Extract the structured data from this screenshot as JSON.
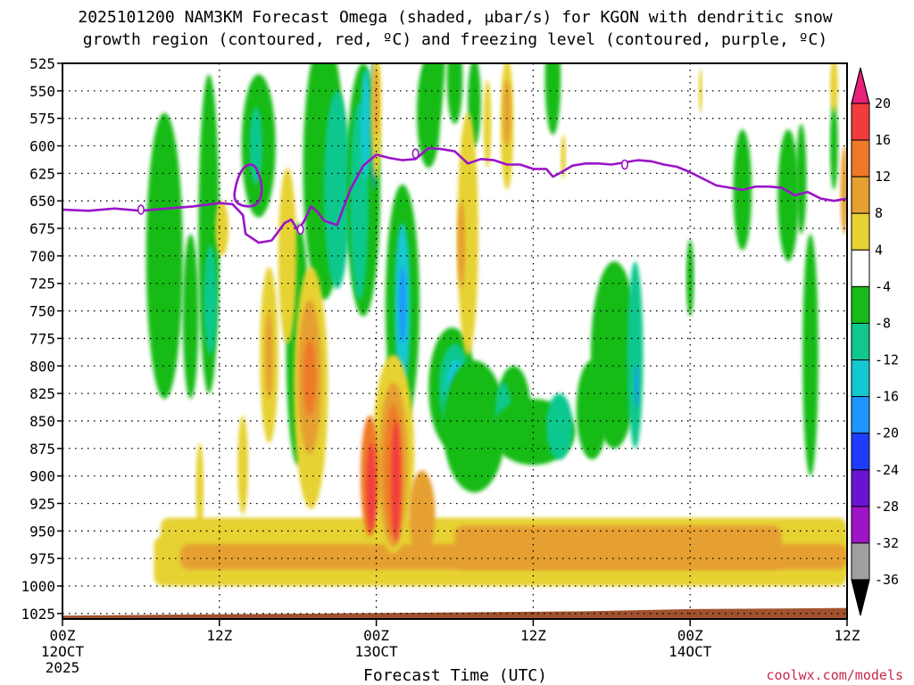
{
  "chart_data": {
    "type": "heatmap",
    "title_line1": "2025101200 NAM3KM Forecast Omega (shaded, μbar/s) for KGON with dendritic snow",
    "title_line2": "growth region (contoured, red, ºC) and freezing level (contoured, purple, ºC)",
    "xlabel": "Forecast Time (UTC)",
    "credit": "coolwx.com/models",
    "x_range_hours": [
      0,
      60
    ],
    "y_range_hpa": [
      525,
      1030
    ],
    "y_ticks": [
      "525",
      "550",
      "575",
      "600",
      "625",
      "650",
      "675",
      "700",
      "725",
      "750",
      "775",
      "800",
      "825",
      "850",
      "875",
      "900",
      "925",
      "950",
      "975",
      "1000",
      "1025"
    ],
    "x_ticks": [
      {
        "hour": 0,
        "label": "00Z",
        "sub1": "12OCT",
        "sub2": "2025"
      },
      {
        "hour": 12,
        "label": "12Z",
        "sub1": "",
        "sub2": ""
      },
      {
        "hour": 24,
        "label": "00Z",
        "sub1": "13OCT",
        "sub2": ""
      },
      {
        "hour": 36,
        "label": "12Z",
        "sub1": "",
        "sub2": ""
      },
      {
        "hour": 48,
        "label": "00Z",
        "sub1": "14OCT",
        "sub2": ""
      },
      {
        "hour": 60,
        "label": "12Z",
        "sub1": "",
        "sub2": ""
      }
    ],
    "colorbar": {
      "levels": [
        "20",
        "16",
        "12",
        "8",
        "4",
        "-4",
        "-8",
        "-12",
        "-16",
        "-20",
        "-24",
        "-28",
        "-32",
        "-36"
      ],
      "colors": [
        "#ee2a5a",
        "#f23c3c",
        "#ee7a28",
        "#e6a030",
        "#e6d232",
        "#ffffff",
        "#16bb16",
        "#10c88e",
        "#14c8d2",
        "#1e96ff",
        "#1e3cff",
        "#6a14d2",
        "#a014c8",
        "#a0a0a0",
        "#000000"
      ],
      "top_color": "#e8207a"
    },
    "freezing_level": {
      "label": "0",
      "points": [
        [
          0,
          658
        ],
        [
          2,
          659
        ],
        [
          4,
          657
        ],
        [
          6,
          659
        ],
        [
          8,
          657
        ],
        [
          10,
          655
        ],
        [
          12,
          652
        ],
        [
          13,
          653
        ],
        [
          13.8,
          663
        ],
        [
          14,
          680
        ],
        [
          15,
          688
        ],
        [
          16,
          686
        ],
        [
          17,
          670
        ],
        [
          17.5,
          667
        ],
        [
          18,
          677
        ],
        [
          18.5,
          668
        ],
        [
          19,
          655
        ],
        [
          19.5,
          660
        ],
        [
          20,
          668
        ],
        [
          21,
          672
        ],
        [
          22,
          640
        ],
        [
          23,
          618
        ],
        [
          24,
          608
        ],
        [
          25,
          611
        ],
        [
          26,
          613
        ],
        [
          27,
          612
        ],
        [
          28,
          602
        ],
        [
          29,
          603
        ],
        [
          30,
          605
        ],
        [
          31,
          616
        ],
        [
          32,
          612
        ],
        [
          33,
          613
        ],
        [
          34,
          617
        ],
        [
          35,
          617
        ],
        [
          36,
          621
        ],
        [
          37,
          621
        ],
        [
          37.5,
          628
        ],
        [
          38,
          625
        ],
        [
          39,
          618
        ],
        [
          40,
          616
        ],
        [
          41,
          616
        ],
        [
          42,
          617
        ],
        [
          43,
          615
        ],
        [
          44,
          613
        ],
        [
          45,
          614
        ],
        [
          46,
          617
        ],
        [
          47,
          619
        ],
        [
          48,
          624
        ],
        [
          49,
          630
        ],
        [
          50,
          636
        ],
        [
          51,
          638
        ],
        [
          52,
          640
        ],
        [
          53,
          637
        ],
        [
          54,
          637
        ],
        [
          55,
          638
        ],
        [
          56,
          645
        ],
        [
          57,
          642
        ],
        [
          58,
          648
        ],
        [
          59,
          650
        ],
        [
          60,
          648
        ]
      ]
    },
    "blobs": [
      {
        "hour": 7.8,
        "hpa": 700,
        "dh": 1.4,
        "dp": 130,
        "level": -8
      },
      {
        "hour": 9.8,
        "hpa": 755,
        "dh": 0.6,
        "dp": 75,
        "level": -8
      },
      {
        "hour": 11.2,
        "hpa": 680,
        "dh": 0.8,
        "dp": 145,
        "level": -8
      },
      {
        "hour": 11.3,
        "hpa": 740,
        "dh": 0.5,
        "dp": 50,
        "level": -12
      },
      {
        "hour": 15.0,
        "hpa": 600,
        "dh": 1.3,
        "dp": 65,
        "level": -8
      },
      {
        "hour": 14.8,
        "hpa": 600,
        "dh": 0.5,
        "dp": 35,
        "level": -12
      },
      {
        "hour": 18.0,
        "hpa": 780,
        "dh": 0.9,
        "dp": 110,
        "level": -8
      },
      {
        "hour": 20.0,
        "hpa": 620,
        "dh": 1.6,
        "dp": 120,
        "level": -8
      },
      {
        "hour": 21.0,
        "hpa": 640,
        "dh": 1.0,
        "dp": 90,
        "level": -12
      },
      {
        "hour": 22.1,
        "hpa": 640,
        "dh": 0.5,
        "dp": 60,
        "level": -16
      },
      {
        "hour": 22.4,
        "hpa": 640,
        "dh": 0.25,
        "dp": 35,
        "level": -20
      },
      {
        "hour": 23.0,
        "hpa": 640,
        "dh": 1.3,
        "dp": 115,
        "level": -8
      },
      {
        "hour": 22.7,
        "hpa": 650,
        "dh": 0.7,
        "dp": 90,
        "level": -12
      },
      {
        "hour": 23.2,
        "hpa": 580,
        "dh": 0.4,
        "dp": 50,
        "level": -16
      },
      {
        "hour": 23.8,
        "hpa": 570,
        "dh": 0.2,
        "dp": 70,
        "level": -20
      },
      {
        "hour": 26.0,
        "hpa": 745,
        "dh": 1.3,
        "dp": 110,
        "level": -8
      },
      {
        "hour": 26.0,
        "hpa": 745,
        "dh": 0.6,
        "dp": 75,
        "level": -16
      },
      {
        "hour": 26.0,
        "hpa": 745,
        "dh": 0.25,
        "dp": 35,
        "level": -20
      },
      {
        "hour": 28.0,
        "hpa": 570,
        "dh": 0.9,
        "dp": 50,
        "level": -8
      },
      {
        "hour": 29.8,
        "hpa": 820,
        "dh": 1.8,
        "dp": 55,
        "level": -8
      },
      {
        "hour": 30.0,
        "hpa": 820,
        "dh": 1.2,
        "dp": 40,
        "level": -12
      },
      {
        "hour": 30.1,
        "hpa": 822,
        "dh": 0.8,
        "dp": 28,
        "level": -16
      },
      {
        "hour": 30.2,
        "hpa": 825,
        "dh": 0.45,
        "dp": 18,
        "level": -20
      },
      {
        "hour": 30.3,
        "hpa": 828,
        "dh": 0.2,
        "dp": 10,
        "level": -24
      },
      {
        "hour": 31.5,
        "hpa": 855,
        "dh": 2.4,
        "dp": 60,
        "level": -8
      },
      {
        "hour": 34.5,
        "hpa": 840,
        "dh": 1.3,
        "dp": 40,
        "level": -8
      },
      {
        "hour": 33.7,
        "hpa": 845,
        "dh": 0.6,
        "dp": 30,
        "level": -12
      },
      {
        "hour": 36.0,
        "hpa": 860,
        "dh": 3.2,
        "dp": 30,
        "level": -8
      },
      {
        "hour": 38.0,
        "hpa": 855,
        "dh": 1.0,
        "dp": 30,
        "level": -12
      },
      {
        "hour": 42.2,
        "hpa": 790,
        "dh": 1.8,
        "dp": 85,
        "level": -8
      },
      {
        "hour": 43.8,
        "hpa": 790,
        "dh": 0.6,
        "dp": 85,
        "level": -12
      },
      {
        "hour": 43.9,
        "hpa": 818,
        "dh": 0.15,
        "dp": 20,
        "level": -20
      },
      {
        "hour": 40.5,
        "hpa": 840,
        "dh": 1.2,
        "dp": 45,
        "level": -8
      },
      {
        "hour": 28.5,
        "hpa": 500,
        "dh": 0.8,
        "dp": 80,
        "level": -8
      },
      {
        "hour": 30.0,
        "hpa": 540,
        "dh": 0.6,
        "dp": 40,
        "level": -8
      },
      {
        "hour": 31.5,
        "hpa": 560,
        "dh": 0.5,
        "dp": 40,
        "level": -8
      },
      {
        "hour": 37.5,
        "hpa": 540,
        "dh": 0.6,
        "dp": 50,
        "level": -8
      },
      {
        "hour": 52.0,
        "hpa": 640,
        "dh": 0.7,
        "dp": 55,
        "level": -8
      },
      {
        "hour": 55.5,
        "hpa": 645,
        "dh": 0.8,
        "dp": 60,
        "level": -8
      },
      {
        "hour": 48.0,
        "hpa": 720,
        "dh": 0.3,
        "dp": 35,
        "level": -8
      },
      {
        "hour": 57.2,
        "hpa": 790,
        "dh": 0.6,
        "dp": 110,
        "level": -8
      },
      {
        "hour": 59.0,
        "hpa": 600,
        "dh": 0.3,
        "dp": 40,
        "level": -8
      },
      {
        "hour": 56.5,
        "hpa": 630,
        "dh": 0.4,
        "dp": 50,
        "level": -8
      },
      {
        "hour": 17.2,
        "hpa": 700,
        "dh": 0.7,
        "dp": 80,
        "level": 4
      },
      {
        "hour": 19.0,
        "hpa": 820,
        "dh": 1.3,
        "dp": 110,
        "level": 4
      },
      {
        "hour": 18.9,
        "hpa": 810,
        "dh": 0.9,
        "dp": 70,
        "level": 8
      },
      {
        "hour": 18.9,
        "hpa": 810,
        "dh": 0.5,
        "dp": 35,
        "level": 12
      },
      {
        "hour": 15.8,
        "hpa": 790,
        "dh": 0.7,
        "dp": 80,
        "level": 4
      },
      {
        "hour": 15.8,
        "hpa": 790,
        "dh": 0.3,
        "dp": 40,
        "level": 8
      },
      {
        "hour": 25.3,
        "hpa": 880,
        "dh": 1.6,
        "dp": 90,
        "level": 4
      },
      {
        "hour": 25.3,
        "hpa": 890,
        "dh": 1.1,
        "dp": 75,
        "level": 8
      },
      {
        "hour": 23.5,
        "hpa": 900,
        "dh": 0.7,
        "dp": 55,
        "level": 12
      },
      {
        "hour": 25.3,
        "hpa": 895,
        "dh": 0.7,
        "dp": 60,
        "level": 12
      },
      {
        "hour": 23.6,
        "hpa": 910,
        "dh": 0.35,
        "dp": 40,
        "level": 16
      },
      {
        "hour": 25.5,
        "hpa": 905,
        "dh": 0.35,
        "dp": 55,
        "level": 16
      },
      {
        "hour": 27.5,
        "hpa": 935,
        "dh": 1.0,
        "dp": 40,
        "level": 8
      },
      {
        "hour": 31.0,
        "hpa": 680,
        "dh": 0.8,
        "dp": 110,
        "level": 4
      },
      {
        "hour": 30.5,
        "hpa": 690,
        "dh": 0.3,
        "dp": 40,
        "level": 8
      },
      {
        "hour": 24.0,
        "hpa": 570,
        "dh": 0.4,
        "dp": 60,
        "level": 4
      },
      {
        "hour": 24.0,
        "hpa": 560,
        "dh": 0.2,
        "dp": 30,
        "level": 8
      },
      {
        "hour": 34.0,
        "hpa": 580,
        "dh": 0.5,
        "dp": 60,
        "level": 4
      },
      {
        "hour": 34.0,
        "hpa": 570,
        "dh": 0.3,
        "dp": 30,
        "level": 8
      },
      {
        "hour": 32.5,
        "hpa": 580,
        "dh": 0.3,
        "dp": 40,
        "level": 4
      },
      {
        "hour": 61.0,
        "hpa": 650,
        "dh": 0.5,
        "dp": 130,
        "level": 4
      },
      {
        "hour": 59.8,
        "hpa": 640,
        "dh": 0.3,
        "dp": 40,
        "level": 8
      },
      {
        "hour": 59.0,
        "hpa": 545,
        "dh": 0.3,
        "dp": 25,
        "level": 4
      },
      {
        "hour": 12.2,
        "hpa": 675,
        "dh": 0.5,
        "dp": 25,
        "level": 4
      },
      {
        "hour": 38.3,
        "hpa": 610,
        "dh": 0.2,
        "dp": 20,
        "level": 4
      },
      {
        "hour": 48.8,
        "hpa": 550,
        "dh": 0.15,
        "dp": 20,
        "level": 4
      },
      {
        "hour": 13.8,
        "hpa": 890,
        "dh": 0.4,
        "dp": 45,
        "level": 4
      },
      {
        "hour": 10.5,
        "hpa": 910,
        "dh": 0.3,
        "dp": 40,
        "level": 4
      }
    ],
    "bands": [
      {
        "h0": 7.0,
        "h1": 60.0,
        "top": 955,
        "bottom": 1000,
        "level": 4
      },
      {
        "h0": 7.5,
        "h1": 60.0,
        "top": 938,
        "bottom": 992,
        "level": 4
      },
      {
        "h0": 9.0,
        "h1": 60.0,
        "top": 962,
        "bottom": 985,
        "level": 8
      },
      {
        "h0": 30.0,
        "h1": 55.0,
        "top": 945,
        "bottom": 985,
        "level": 8
      }
    ],
    "terrain_color": "#a0522d"
  }
}
